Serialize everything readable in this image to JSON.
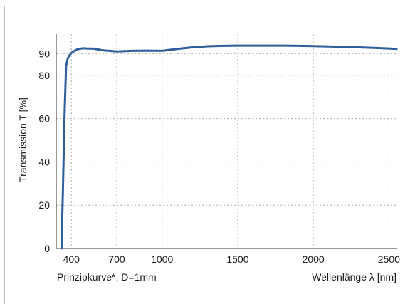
{
  "chart_data": {
    "type": "line",
    "ylabel": "Transmission T [%]",
    "xlabel": "Wellenlänge λ [nm]",
    "caption": "Prinzipkurve*, D=1mm",
    "x_ticks": [
      400,
      700,
      1000,
      1500,
      2000,
      2500
    ],
    "y_ticks": [
      0,
      20,
      40,
      60,
      80,
      90
    ],
    "xlim": [
      300,
      2550
    ],
    "ylim": [
      0,
      99
    ],
    "grid": true,
    "colors": {
      "line": "#2f5f9c",
      "grid": "#b0b0b0",
      "axis": "#333333"
    },
    "series": [
      {
        "x": [
          335,
          345,
          355,
          365,
          375,
          385,
          400,
          420,
          440,
          460,
          480,
          500,
          550,
          600,
          650,
          700,
          800,
          900,
          1000,
          1100,
          1200,
          1300,
          1400,
          1500,
          1600,
          1700,
          1800,
          1900,
          2000,
          2100,
          2200,
          2300,
          2400,
          2500,
          2550
        ],
        "y": [
          0,
          30,
          62,
          84,
          87.5,
          89,
          90.3,
          91.3,
          92,
          92.3,
          92.5,
          92.4,
          92.3,
          91.6,
          91.3,
          91,
          91.3,
          91.4,
          91.3,
          92.2,
          92.9,
          93.4,
          93.6,
          93.7,
          93.7,
          93.7,
          93.7,
          93.6,
          93.5,
          93.3,
          93.1,
          92.9,
          92.7,
          92.4,
          92.2
        ]
      }
    ]
  }
}
